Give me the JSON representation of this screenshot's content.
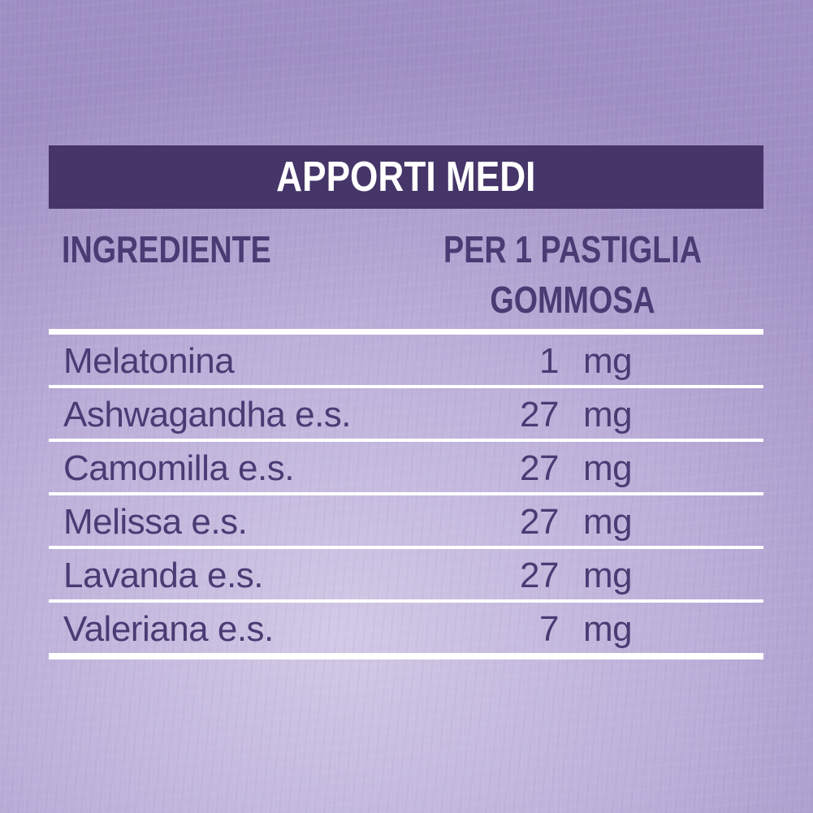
{
  "label": {
    "title": "APPORTI MEDI"
  },
  "table": {
    "columns": {
      "ingredient": "INGREDIENTE",
      "amount_line1": "PER 1 PASTIGLIA",
      "amount_line2": "GOMMOSA"
    },
    "rows": [
      {
        "name": "Melatonina",
        "amount": "1",
        "unit": "mg"
      },
      {
        "name": "Ashwagandha e.s.",
        "amount": "27",
        "unit": "mg"
      },
      {
        "name": "Camomilla e.s.",
        "amount": "27",
        "unit": "mg"
      },
      {
        "name": "Melissa e.s.",
        "amount": "27",
        "unit": "mg"
      },
      {
        "name": "Lavanda e.s.",
        "amount": "27",
        "unit": "mg"
      },
      {
        "name": "Valeriana e.s.",
        "amount": "7",
        "unit": "mg"
      }
    ]
  },
  "colors": {
    "header_bg": "#453568",
    "text_color": "#4a3b74",
    "separator": "#ffffff",
    "bg_inner": "#d1c9e6",
    "bg_mid": "#bcafd9",
    "bg_outer": "#9e8ec3"
  }
}
